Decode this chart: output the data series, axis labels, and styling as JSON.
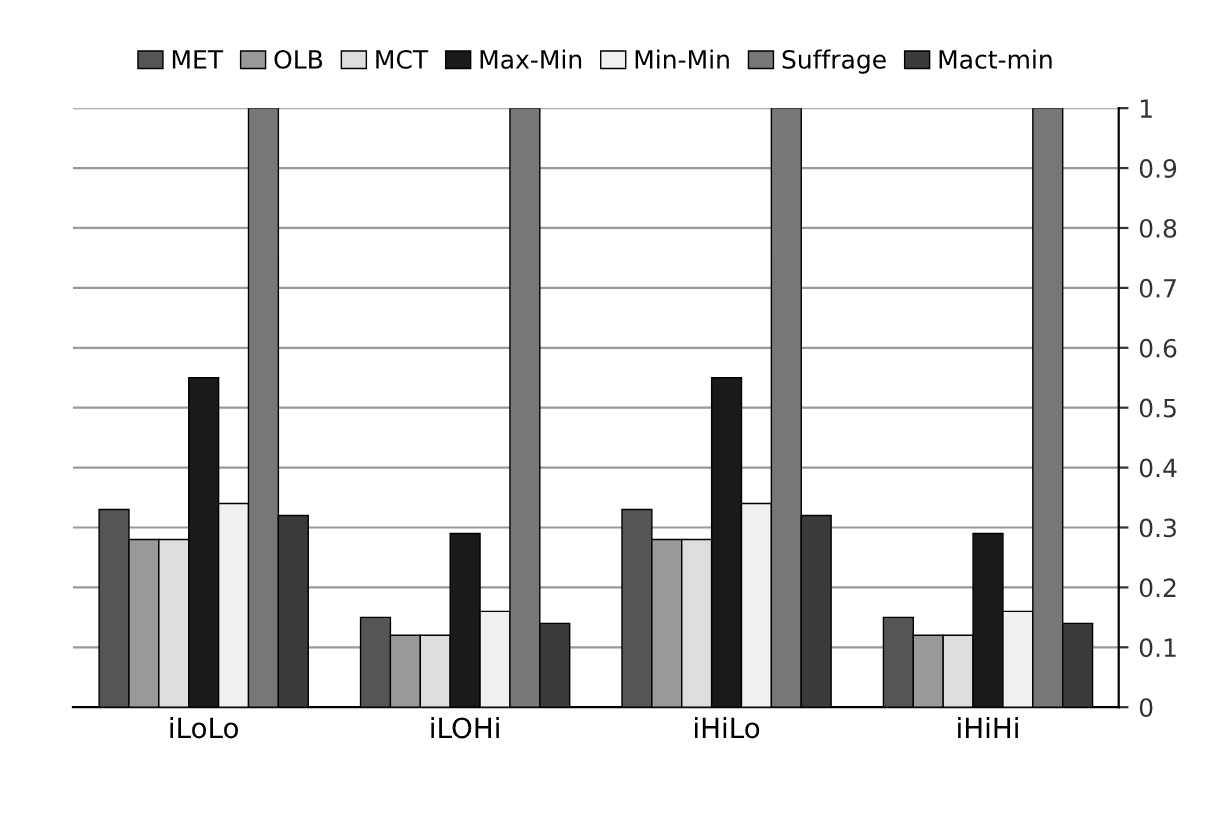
{
  "chart_data": {
    "type": "bar",
    "categories": [
      "iLoLo",
      "iLOHi",
      "iHiLo",
      "iHiHi"
    ],
    "series": [
      {
        "name": "MET",
        "color": "#555555",
        "values": [
          0.33,
          0.15,
          0.33,
          0.15
        ]
      },
      {
        "name": "OLB",
        "color": "#999999",
        "values": [
          0.28,
          0.12,
          0.28,
          0.12
        ]
      },
      {
        "name": "MCT",
        "color": "#dddddd",
        "values": [
          0.28,
          0.12,
          0.28,
          0.12
        ]
      },
      {
        "name": "Max-Min",
        "color": "#1a1a1a",
        "values": [
          0.55,
          0.29,
          0.55,
          0.29
        ]
      },
      {
        "name": "Min-Min",
        "color": "#f0f0f0",
        "values": [
          0.34,
          0.16,
          0.34,
          0.16
        ]
      },
      {
        "name": "Suffrage",
        "color": "#777777",
        "values": [
          1.0,
          1.0,
          1.0,
          1.0
        ]
      },
      {
        "name": "Mact-min",
        "color": "#3a3a3a",
        "values": [
          0.32,
          0.14,
          0.32,
          0.14
        ]
      }
    ],
    "ylim": [
      0,
      1
    ],
    "yticks": [
      0,
      0.1,
      0.2,
      0.3,
      0.4,
      0.5,
      0.6,
      0.7,
      0.8,
      0.9,
      1
    ],
    "grid": "y",
    "legend": "top"
  }
}
